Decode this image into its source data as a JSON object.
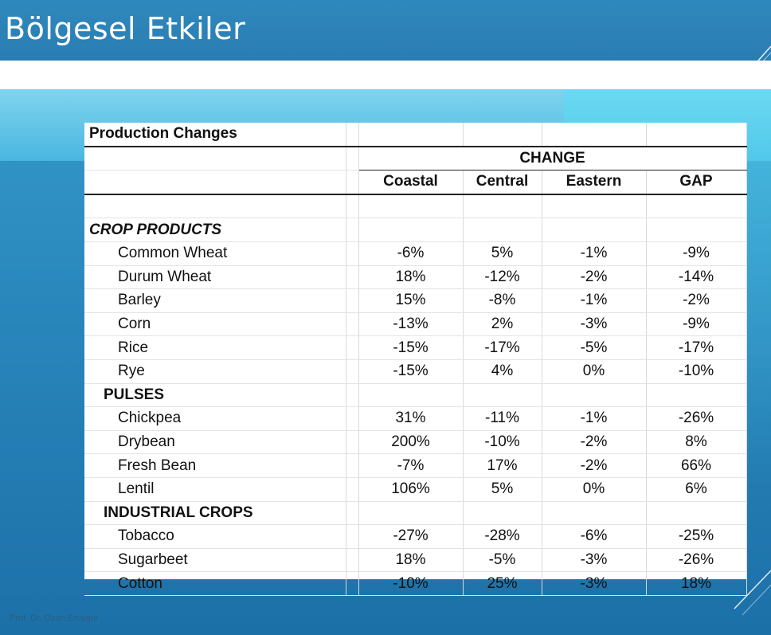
{
  "slide": {
    "title": "Bölgesel Etkiler",
    "footer": "Prof. Dr. Ozan Eruygur"
  },
  "table": {
    "title": "Production Changes",
    "group_header": "CHANGE",
    "columns": [
      "Coastal",
      "Central",
      "Eastern",
      "GAP"
    ],
    "sections": [
      {
        "label": "CROP PRODUCTS",
        "rows": [
          {
            "name": "Common Wheat",
            "values": [
              "-6%",
              "5%",
              "-1%",
              "-9%"
            ]
          },
          {
            "name": "Durum Wheat",
            "values": [
              "18%",
              "-12%",
              "-2%",
              "-14%"
            ]
          },
          {
            "name": "Barley",
            "values": [
              "15%",
              "-8%",
              "-1%",
              "-2%"
            ]
          },
          {
            "name": "Corn",
            "values": [
              "-13%",
              "2%",
              "-3%",
              "-9%"
            ]
          },
          {
            "name": "Rice",
            "values": [
              "-15%",
              "-17%",
              "-5%",
              "-17%"
            ]
          },
          {
            "name": "Rye",
            "values": [
              "-15%",
              "4%",
              "0%",
              "-10%"
            ]
          }
        ]
      },
      {
        "label": "PULSES",
        "rows": [
          {
            "name": "Chickpea",
            "values": [
              "31%",
              "-11%",
              "-1%",
              "-26%"
            ]
          },
          {
            "name": "Drybean",
            "values": [
              "200%",
              "-10%",
              "-2%",
              "8%"
            ]
          },
          {
            "name": "Fresh Bean",
            "values": [
              "-7%",
              "17%",
              "-2%",
              "66%"
            ]
          },
          {
            "name": "Lentil",
            "values": [
              "106%",
              "5%",
              "0%",
              "6%"
            ]
          }
        ]
      },
      {
        "label": "INDUSTRIAL CROPS",
        "rows": [
          {
            "name": "Tobacco",
            "values": [
              "-27%",
              "-28%",
              "-6%",
              "-25%"
            ]
          },
          {
            "name": "Sugarbeet",
            "values": [
              "18%",
              "-5%",
              "-3%",
              "-26%"
            ]
          },
          {
            "name": "Cotton",
            "values": [
              "-10%",
              "25%",
              "-3%",
              "18%"
            ]
          }
        ]
      }
    ]
  }
}
